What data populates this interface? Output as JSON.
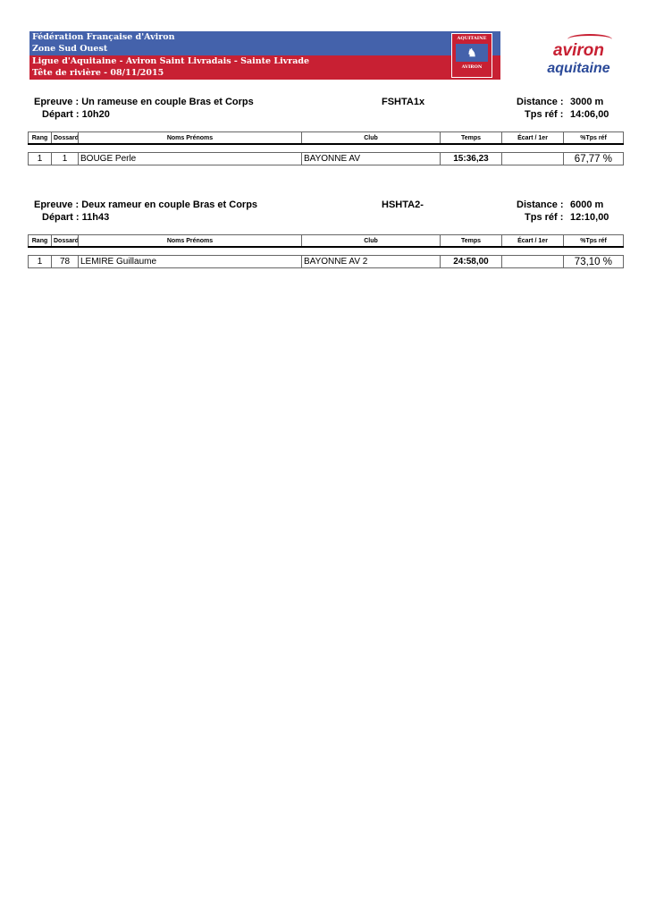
{
  "header": {
    "line1": "Fédération Française d'Aviron",
    "line2": "Zone Sud Ouest",
    "line3": "Ligue d'Aquitaine - Aviron Saint Livradais - Sainte Livrade",
    "line4": "Tête de rivière - 08/11/2015",
    "crest": {
      "top": "AQUITAINE",
      "bottom": "AVIRON"
    },
    "logo": {
      "line1": "aviron",
      "line2": "aquitaine"
    },
    "colors": {
      "blue": "#4462ab",
      "red": "#c82033"
    }
  },
  "columns": [
    "Rang",
    "Dossard",
    "Noms Prénoms",
    "Club",
    "Temps",
    "Écart / 1er",
    "%Tps réf"
  ],
  "events": [
    {
      "epreuve_label": "Epreuve :",
      "epreuve": "Un rameuse en couple Bras et Corps",
      "depart_label": "Départ :",
      "depart": "10h20",
      "code": "FSHTA1x",
      "distance_label": "Distance :",
      "distance": "3000 m",
      "tps_label": "Tps réf :",
      "tps_ref": "14:06,00",
      "rows": [
        {
          "rang": "1",
          "dossard": "1",
          "nom": "BOUGE Perle",
          "club": "BAYONNE AV",
          "temps": "15:36,23",
          "ecart": "",
          "pct": "67,77 %"
        }
      ]
    },
    {
      "epreuve_label": "Epreuve :",
      "epreuve": "Deux rameur en couple Bras et Corps",
      "depart_label": "Départ :",
      "depart": "11h43",
      "code": "HSHTA2-",
      "distance_label": "Distance :",
      "distance": "6000 m",
      "tps_label": "Tps réf :",
      "tps_ref": "12:10,00",
      "rows": [
        {
          "rang": "1",
          "dossard": "78",
          "nom": "LEMIRE Guillaume",
          "club": "BAYONNE AV 2",
          "temps": "24:58,00",
          "ecart": "",
          "pct": "73,10 %"
        }
      ]
    }
  ]
}
